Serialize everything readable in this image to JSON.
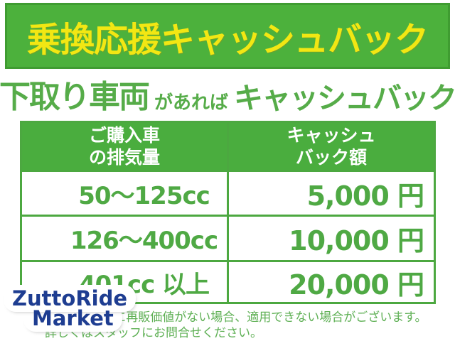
{
  "banner": {
    "title": "乗換応援キャッシュバック",
    "bg_color": "#4cb13c",
    "border_color": "#3f9c31",
    "text_color": "#f2e713"
  },
  "headline": {
    "part1": "下取り車両",
    "part2": "があれば",
    "part3": "キャッシュバック",
    "color": "#56ac49"
  },
  "table": {
    "headers": [
      {
        "line1": "ご購入車",
        "line2": "の排気量"
      },
      {
        "line1": "キャッシュ",
        "line2": "バック額"
      }
    ],
    "rows": [
      {
        "displacement": "50〜125cc",
        "cashback": "5,000 円"
      },
      {
        "displacement": "126〜400cc",
        "cashback": "10,000 円"
      },
      {
        "displacement": "401cc 以上",
        "cashback": "20,000 円"
      }
    ],
    "border_color": "#4ca840",
    "header_bg": "#4aad3e",
    "header_text_color": "#ffffff",
    "cell_text_color": "#4fa944"
  },
  "logo": {
    "line1": "ZuttoRide",
    "line2": "Market",
    "text_color": "#1e3d91"
  },
  "footnote": {
    "line1": "※車両に再販価値がない場合、適用できない場合がございます。",
    "line2": "詳しくはスタッフにお問合せください。",
    "color": "#5fb055"
  }
}
